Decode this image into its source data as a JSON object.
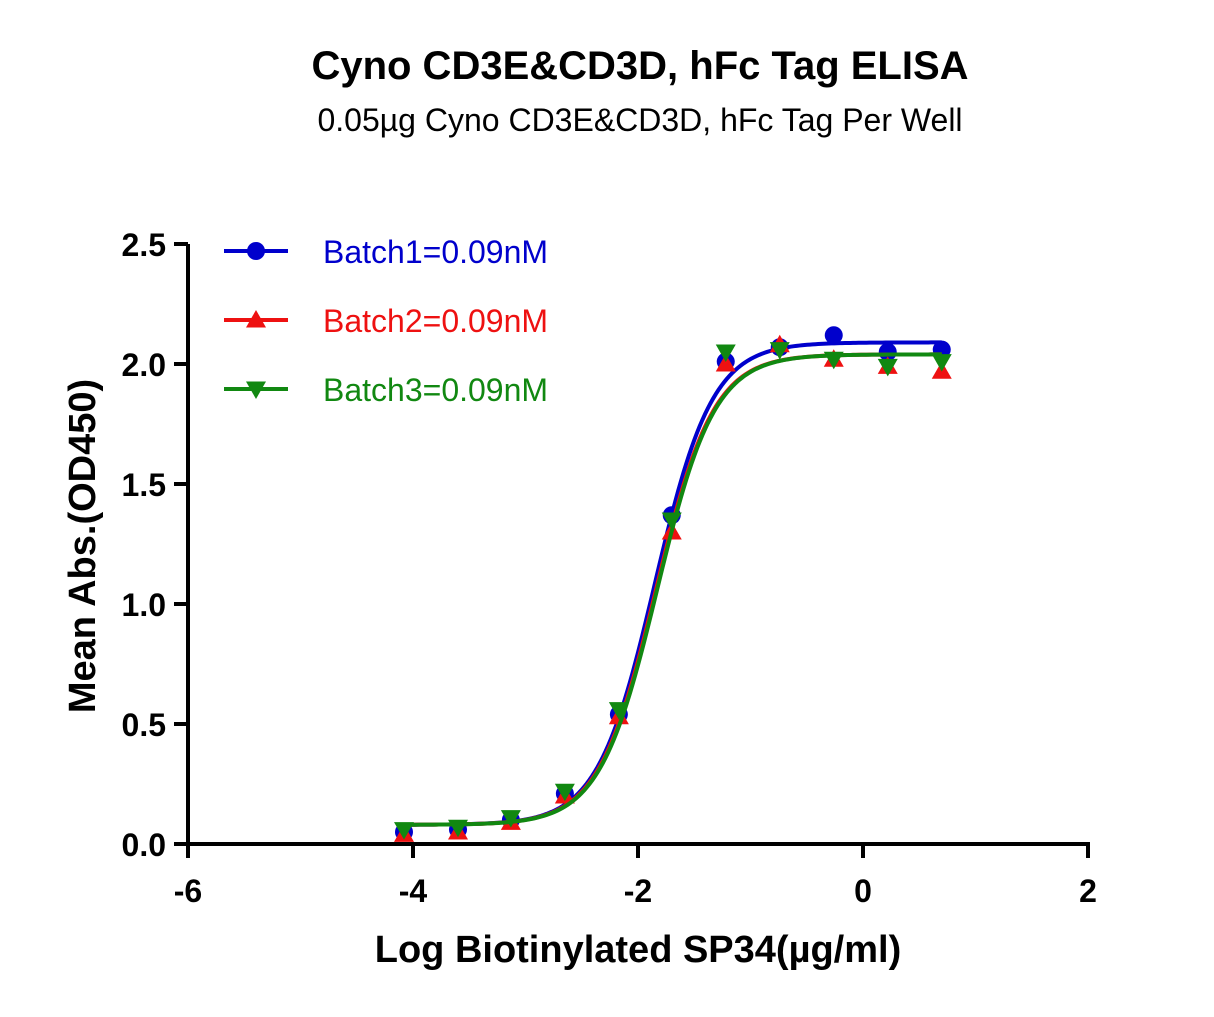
{
  "chart_data": {
    "type": "scatter",
    "title": "Cyno CD3E&CD3D, hFc Tag ELISA",
    "subtitle": "0.05µg Cyno CD3E&CD3D, hFc Tag Per Well",
    "xlabel": "Log Biotinylated SP34(µg/ml)",
    "ylabel": "Mean Abs.(OD450)",
    "xlim": [
      -6,
      2
    ],
    "ylim": [
      0,
      2.5
    ],
    "xticks": [
      -6,
      -4,
      -2,
      0,
      2
    ],
    "xtick_labels": [
      "-6",
      "-4",
      "-2",
      "0",
      "2"
    ],
    "yticks": [
      0,
      0.5,
      1.0,
      1.5,
      2.0,
      2.5
    ],
    "ytick_labels": [
      "0.0",
      "0.5",
      "1.0",
      "1.5",
      "2.0",
      "2.5"
    ],
    "legend_position": "top-left",
    "x": [
      -4.08,
      -3.6,
      -3.13,
      -2.65,
      -2.17,
      -1.7,
      -1.22,
      -0.74,
      -0.26,
      0.22,
      0.7
    ],
    "series": [
      {
        "name": "Batch1=0.09nM",
        "color": "#0000cc",
        "marker": "circle",
        "values": [
          0.05,
          0.06,
          0.1,
          0.21,
          0.54,
          1.37,
          2.01,
          2.07,
          2.12,
          2.05,
          2.06
        ],
        "fit": {
          "bottom": 0.08,
          "top": 2.09,
          "logec50": -1.85,
          "hill": 1.7
        }
      },
      {
        "name": "Batch2=0.09nM",
        "color": "#ee1111",
        "marker": "triangle-up",
        "values": [
          0.04,
          0.05,
          0.09,
          0.2,
          0.53,
          1.3,
          2.0,
          2.08,
          2.02,
          1.99,
          1.97
        ],
        "fit": {
          "bottom": 0.08,
          "top": 2.04,
          "logec50": -1.84,
          "hill": 1.7
        }
      },
      {
        "name": "Batch3=0.09nM",
        "color": "#118811",
        "marker": "triangle-down",
        "values": [
          0.06,
          0.07,
          0.11,
          0.22,
          0.56,
          1.35,
          2.05,
          2.06,
          2.02,
          1.99,
          2.01
        ],
        "fit": {
          "bottom": 0.08,
          "top": 2.04,
          "logec50": -1.83,
          "hill": 1.7
        }
      }
    ]
  }
}
